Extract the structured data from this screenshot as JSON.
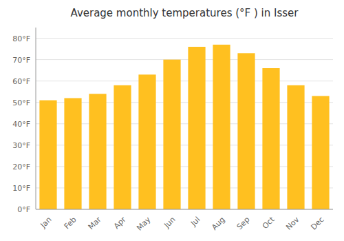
{
  "chart_data": {
    "type": "bar",
    "title": "Average monthly temperatures (°F ) in Isser",
    "categories": [
      "Jan",
      "Feb",
      "Mar",
      "Apr",
      "May",
      "Jun",
      "Jul",
      "Aug",
      "Sep",
      "Oct",
      "Nov",
      "Dec"
    ],
    "values": [
      51,
      52,
      54,
      58,
      63,
      70,
      76,
      77,
      73,
      66,
      58,
      53
    ],
    "color": "#FFC020",
    "ylim": [
      0,
      85
    ],
    "yticks": [
      {
        "value": 0,
        "label": "0°F"
      },
      {
        "value": 10,
        "label": "10°F"
      },
      {
        "value": 20,
        "label": "20°F"
      },
      {
        "value": 30,
        "label": "30°F"
      },
      {
        "value": 40,
        "label": "40°F"
      },
      {
        "value": 50,
        "label": "50°F"
      },
      {
        "value": 60,
        "label": "60°F"
      },
      {
        "value": 70,
        "label": "70°F"
      },
      {
        "value": 80,
        "label": "80°F"
      }
    ],
    "grid": true
  }
}
